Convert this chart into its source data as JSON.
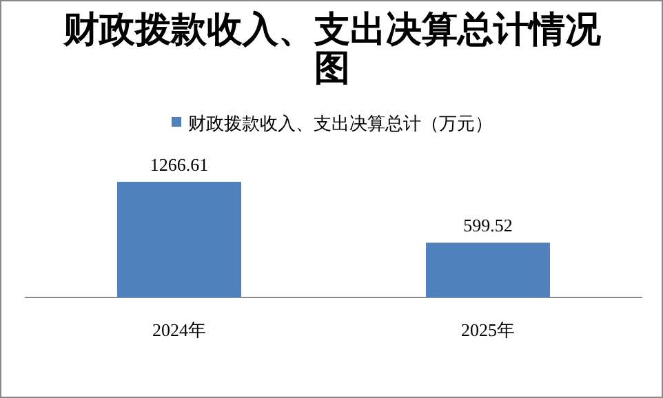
{
  "chart_data": {
    "type": "bar",
    "title": "财政拨款收入、支出决算总计情况图",
    "categories": [
      "2024年",
      "2025年"
    ],
    "series": [
      {
        "name": "财政拨款收入、支出决算总计（万元）",
        "color": "#4f81bd",
        "values": [
          1266.61,
          599.52
        ]
      }
    ],
    "data_labels": true,
    "legend": "top",
    "grid": false
  }
}
